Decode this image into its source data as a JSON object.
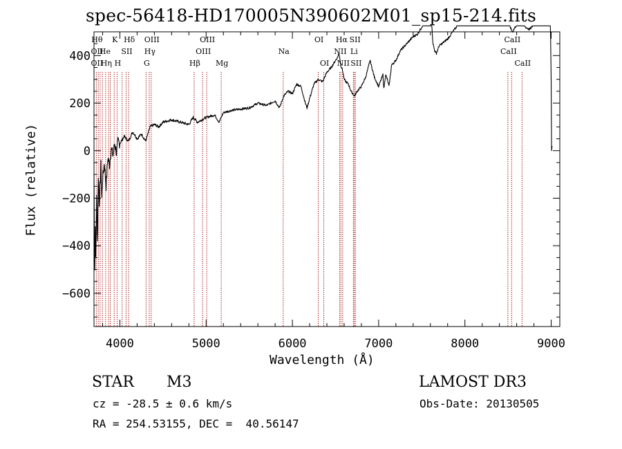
{
  "chart_data": {
    "type": "line",
    "title": "spec-56418-HD170005N390602M01_sp15-214.fits",
    "xlabel": "Wavelength (Å)",
    "ylabel": "Flux (relative)",
    "xlim": [
      3700,
      9100
    ],
    "ylim": [
      -740,
      500
    ],
    "xticks": [
      4000,
      5000,
      6000,
      7000,
      8000,
      9000
    ],
    "yticks": [
      -600,
      -400,
      -200,
      0,
      200,
      400
    ],
    "series": [
      {
        "name": "flux",
        "x": [
          3700,
          3705,
          3710,
          3715,
          3720,
          3730,
          3740,
          3750,
          3760,
          3770,
          3780,
          3790,
          3800,
          3820,
          3840,
          3860,
          3880,
          3900,
          3920,
          3940,
          3960,
          3980,
          4000,
          4050,
          4100,
          4150,
          4200,
          4250,
          4300,
          4350,
          4400,
          4450,
          4500,
          4600,
          4700,
          4800,
          4850,
          4900,
          5000,
          5100,
          5150,
          5200,
          5300,
          5400,
          5500,
          5600,
          5700,
          5800,
          5850,
          5900,
          5950,
          6000,
          6050,
          6100,
          6150,
          6170,
          6200,
          6250,
          6300,
          6350,
          6400,
          6450,
          6500,
          6520,
          6540,
          6550,
          6560,
          6580,
          6600,
          6620,
          6650,
          6680,
          6700,
          6720,
          6750,
          6800,
          6850,
          6880,
          6900,
          6950,
          7000,
          7050,
          7060,
          7080,
          7100,
          7120,
          7150,
          7200,
          7250,
          7300,
          7350,
          7400,
          7450,
          7500,
          7550,
          7580,
          7600,
          7610,
          7630,
          7650,
          7670,
          7700,
          7800,
          7900,
          8000,
          8050,
          8100,
          8150,
          8200,
          8250,
          8300,
          8350,
          8400,
          8450,
          8500,
          8550,
          8600,
          8650,
          8700,
          8750,
          8800,
          8850,
          8900,
          8950,
          8990,
          9000,
          9005,
          9010
        ],
        "values": [
          -100,
          -350,
          -500,
          -300,
          -450,
          -200,
          -380,
          -100,
          -220,
          -150,
          -60,
          -200,
          -120,
          -50,
          -150,
          -30,
          -60,
          10,
          -20,
          30,
          -10,
          40,
          30,
          60,
          40,
          80,
          50,
          70,
          40,
          100,
          110,
          100,
          120,
          130,
          120,
          110,
          140,
          120,
          140,
          150,
          120,
          160,
          170,
          175,
          180,
          200,
          190,
          210,
          180,
          230,
          250,
          240,
          280,
          270,
          200,
          180,
          220,
          280,
          300,
          290,
          330,
          350,
          380,
          390,
          410,
          390,
          360,
          340,
          300,
          290,
          280,
          250,
          240,
          230,
          250,
          270,
          310,
          350,
          380,
          310,
          270,
          320,
          260,
          320,
          300,
          270,
          360,
          380,
          420,
          440,
          460,
          480,
          490,
          520,
          560,
          580,
          590,
          560,
          450,
          420,
          410,
          440,
          470,
          520,
          590,
          540,
          550,
          580,
          610,
          570,
          590,
          600,
          580,
          560,
          540,
          500,
          530,
          560,
          520,
          510,
          530,
          560,
          550,
          570,
          560,
          300,
          0,
          20
        ]
      }
    ],
    "lines": [
      {
        "wl": 3727,
        "group": 1
      },
      {
        "wl": 3750,
        "group": 1
      },
      {
        "wl": 3771,
        "group": 1
      },
      {
        "wl": 3798,
        "group": 1
      },
      {
        "wl": 3835,
        "group": 1
      },
      {
        "wl": 3869,
        "group": 1
      },
      {
        "wl": 3889,
        "group": 1
      },
      {
        "wl": 3934,
        "group": 1
      },
      {
        "wl": 3968,
        "group": 1
      },
      {
        "wl": 4026,
        "group": 1
      },
      {
        "wl": 4072,
        "group": 1
      },
      {
        "wl": 4102,
        "group": 1
      },
      {
        "wl": 4304,
        "group": 1
      },
      {
        "wl": 4340,
        "group": 1
      },
      {
        "wl": 4363,
        "group": 1
      },
      {
        "wl": 4861,
        "group": 2
      },
      {
        "wl": 4959,
        "group": 2
      },
      {
        "wl": 5007,
        "group": 2
      },
      {
        "wl": 5175,
        "group": 2
      },
      {
        "wl": 5893,
        "group": 2
      },
      {
        "wl": 6300,
        "group": 2
      },
      {
        "wl": 6364,
        "group": 2
      },
      {
        "wl": 6548,
        "group": 2
      },
      {
        "wl": 6563,
        "group": 2
      },
      {
        "wl": 6583,
        "group": 2
      },
      {
        "wl": 6707,
        "group": 2
      },
      {
        "wl": 6717,
        "group": 2
      },
      {
        "wl": 6731,
        "group": 2
      },
      {
        "wl": 8498,
        "group": 3
      },
      {
        "wl": 8542,
        "group": 3
      },
      {
        "wl": 8662,
        "group": 3
      }
    ],
    "line_labels": [
      {
        "text": "Hθ",
        "wl": 3727,
        "row": 0
      },
      {
        "text": "K",
        "wl": 3934,
        "row": 0
      },
      {
        "text": "Hδ",
        "wl": 4102,
        "row": 0
      },
      {
        "text": "OIII",
        "wl": 4363,
        "row": 0
      },
      {
        "text": "OII",
        "wl": 3727,
        "row": 1
      },
      {
        "text": "He",
        "wl": 3820,
        "row": 1
      },
      {
        "text": "SII",
        "wl": 4072,
        "row": 1
      },
      {
        "text": "Hγ",
        "wl": 4340,
        "row": 1
      },
      {
        "text": "OII",
        "wl": 3727,
        "row": 2
      },
      {
        "text": "Hη",
        "wl": 3835,
        "row": 2
      },
      {
        "text": "H",
        "wl": 3968,
        "row": 2
      },
      {
        "text": "G",
        "wl": 4304,
        "row": 2
      },
      {
        "text": "OIII",
        "wl": 5007,
        "row": 0
      },
      {
        "text": "OIII",
        "wl": 4959,
        "row": 1
      },
      {
        "text": "Hβ",
        "wl": 4861,
        "row": 2
      },
      {
        "text": "Mg",
        "wl": 5175,
        "row": 2
      },
      {
        "text": "Na",
        "wl": 5893,
        "row": 1
      },
      {
        "text": "OI",
        "wl": 6300,
        "row": 0
      },
      {
        "text": "OI",
        "wl": 6364,
        "row": 2
      },
      {
        "text": "Hα",
        "wl": 6563,
        "row": 0
      },
      {
        "text": "SII",
        "wl": 6717,
        "row": 0
      },
      {
        "text": "NII",
        "wl": 6548,
        "row": 1
      },
      {
        "text": "Li",
        "wl": 6707,
        "row": 1
      },
      {
        "text": "NII",
        "wl": 6583,
        "row": 2
      },
      {
        "text": "SII",
        "wl": 6731,
        "row": 2
      },
      {
        "text": "CaII",
        "wl": 8542,
        "row": 0
      },
      {
        "text": "CaII",
        "wl": 8498,
        "row": 1
      },
      {
        "text": "CaII",
        "wl": 8662,
        "row": 2
      }
    ]
  },
  "info": {
    "object_class": "STAR",
    "subclass": "M3",
    "survey": "LAMOST DR3",
    "cz": "cz = -28.5 ± 0.6 km/s",
    "obs_date": "Obs-Date: 20130505",
    "coords": "RA = 254.53155, DEC =  40.56147"
  },
  "colors": {
    "axis": "#000000",
    "flux": "#000000",
    "lines": "#b22222"
  }
}
